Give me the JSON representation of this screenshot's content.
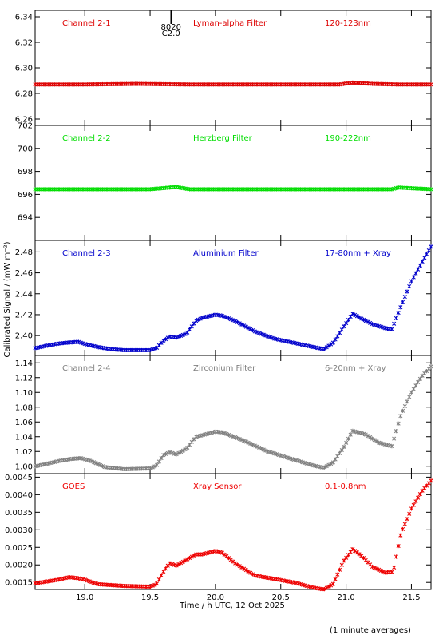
{
  "figure": {
    "ylabel": "Calibrated Signal / (mW m⁻²)",
    "xlabel": "Time / h UTC, 12 Oct 2025",
    "footnote": "(1 minute averages)",
    "xlim": [
      18.62,
      21.65
    ],
    "xticks": [
      19.0,
      19.5,
      20.0,
      20.5,
      21.0,
      21.5
    ],
    "xtick_labels": [
      "19.0",
      "19.5",
      "20.0",
      "20.5",
      "21.0",
      "21.5"
    ],
    "marker": {
      "label_top": "8020",
      "label_bottom": "C2.0",
      "x": 19.66
    }
  },
  "chart_data": [
    {
      "type": "scatter",
      "channel": "Channel 2-1",
      "filter": "Lyman-alpha Filter",
      "band": "120-123nm",
      "color": "#dd0000",
      "ylim": [
        6.255,
        6.345
      ],
      "yticks": [
        6.26,
        6.28,
        6.3,
        6.32,
        6.34
      ],
      "ytick_labels": [
        "6.26",
        "6.28",
        "6.30",
        "6.32",
        "6.34"
      ],
      "x": [
        18.62,
        19.0,
        19.4,
        19.8,
        20.2,
        20.6,
        20.95,
        21.05,
        21.2,
        21.4,
        21.65
      ],
      "y": [
        6.287,
        6.287,
        6.2875,
        6.287,
        6.287,
        6.287,
        6.287,
        6.2885,
        6.2875,
        6.287,
        6.287
      ]
    },
    {
      "type": "scatter",
      "channel": "Channel 2-2",
      "filter": "Herzberg Filter",
      "band": "190-222nm",
      "color": "#00dd00",
      "ylim": [
        692.0,
        702.0
      ],
      "yticks": [
        694,
        696,
        698,
        700,
        702
      ],
      "ytick_labels": [
        "694",
        "696",
        "698",
        "700",
        "702"
      ],
      "x": [
        18.62,
        19.0,
        19.5,
        19.7,
        19.8,
        20.2,
        20.6,
        21.0,
        21.35,
        21.4,
        21.65
      ],
      "y": [
        696.45,
        696.45,
        696.45,
        696.65,
        696.45,
        696.45,
        696.45,
        696.45,
        696.45,
        696.6,
        696.45
      ]
    },
    {
      "type": "scatter",
      "channel": "Channel 2-3",
      "filter": "Aluminium Filter",
      "band": "17-80nm + Xray",
      "color": "#0000cc",
      "ylim": [
        2.381,
        2.491
      ],
      "yticks": [
        2.4,
        2.42,
        2.44,
        2.46,
        2.48
      ],
      "ytick_labels": [
        "2.40",
        "2.42",
        "2.44",
        "2.46",
        "2.48"
      ],
      "x": [
        18.62,
        18.7,
        18.78,
        18.85,
        18.95,
        19.0,
        19.1,
        19.2,
        19.3,
        19.5,
        19.55,
        19.6,
        19.65,
        19.7,
        19.78,
        19.85,
        19.9,
        20.0,
        20.05,
        20.15,
        20.3,
        20.45,
        20.6,
        20.75,
        20.83,
        20.9,
        20.98,
        21.05,
        21.12,
        21.2,
        21.3,
        21.35,
        21.42,
        21.5,
        21.58,
        21.65
      ],
      "y": [
        2.388,
        2.39,
        2.392,
        2.393,
        2.394,
        2.392,
        2.389,
        2.387,
        2.386,
        2.386,
        2.388,
        2.395,
        2.399,
        2.398,
        2.402,
        2.414,
        2.417,
        2.42,
        2.419,
        2.414,
        2.404,
        2.397,
        2.393,
        2.389,
        2.387,
        2.393,
        2.408,
        2.421,
        2.416,
        2.411,
        2.407,
        2.406,
        2.428,
        2.452,
        2.47,
        2.485
      ]
    },
    {
      "type": "scatter",
      "channel": "Channel 2-4",
      "filter": "Zirconium Filter",
      "band": "6-20nm + Xray",
      "color": "#808080",
      "ylim": [
        0.99,
        1.15
      ],
      "yticks": [
        1.0,
        1.02,
        1.04,
        1.06,
        1.08,
        1.1,
        1.12,
        1.14
      ],
      "ytick_labels": [
        "1.00",
        "1.02",
        "1.04",
        "1.06",
        "1.08",
        "1.10",
        "1.12",
        "1.14"
      ],
      "x": [
        18.62,
        18.7,
        18.8,
        18.9,
        18.97,
        19.05,
        19.15,
        19.3,
        19.5,
        19.55,
        19.6,
        19.65,
        19.7,
        19.78,
        19.85,
        19.9,
        20.0,
        20.05,
        20.2,
        20.4,
        20.6,
        20.75,
        20.83,
        20.9,
        20.98,
        21.05,
        21.15,
        21.25,
        21.35,
        21.42,
        21.5,
        21.58,
        21.65
      ],
      "y": [
        1.0,
        1.003,
        1.007,
        1.01,
        1.011,
        1.007,
        0.999,
        0.996,
        0.997,
        1.001,
        1.015,
        1.019,
        1.016,
        1.024,
        1.04,
        1.042,
        1.047,
        1.046,
        1.036,
        1.02,
        1.009,
        1.001,
        0.998,
        1.005,
        1.025,
        1.048,
        1.043,
        1.032,
        1.027,
        1.07,
        1.1,
        1.122,
        1.135
      ]
    },
    {
      "type": "scatter",
      "channel": "GOES",
      "filter": "Xray Sensor",
      "band": "0.1-0.8nm",
      "color": "#ee0000",
      "ylim": [
        0.0013,
        0.0046
      ],
      "yticks": [
        0.0015,
        0.002,
        0.0025,
        0.003,
        0.0035,
        0.004,
        0.0045
      ],
      "ytick_labels": [
        "0.0015",
        "0.0020",
        "0.0025",
        "0.0030",
        "0.0035",
        "0.0040",
        "0.0045"
      ],
      "x": [
        18.62,
        18.7,
        18.8,
        18.88,
        18.95,
        19.0,
        19.1,
        19.3,
        19.5,
        19.55,
        19.6,
        19.65,
        19.7,
        19.78,
        19.85,
        19.9,
        20.0,
        20.05,
        20.15,
        20.3,
        20.45,
        20.6,
        20.75,
        20.83,
        20.9,
        20.98,
        21.05,
        21.12,
        21.2,
        21.3,
        21.36,
        21.42,
        21.5,
        21.58,
        21.65
      ],
      "y": [
        0.00148,
        0.00152,
        0.00158,
        0.00165,
        0.00162,
        0.00158,
        0.00145,
        0.0014,
        0.00138,
        0.00145,
        0.0018,
        0.00205,
        0.00198,
        0.00215,
        0.0023,
        0.0023,
        0.0024,
        0.00235,
        0.00205,
        0.0017,
        0.0016,
        0.0015,
        0.00135,
        0.0013,
        0.00145,
        0.0021,
        0.00245,
        0.00225,
        0.00195,
        0.00178,
        0.0018,
        0.0029,
        0.0036,
        0.0041,
        0.0044
      ]
    }
  ]
}
